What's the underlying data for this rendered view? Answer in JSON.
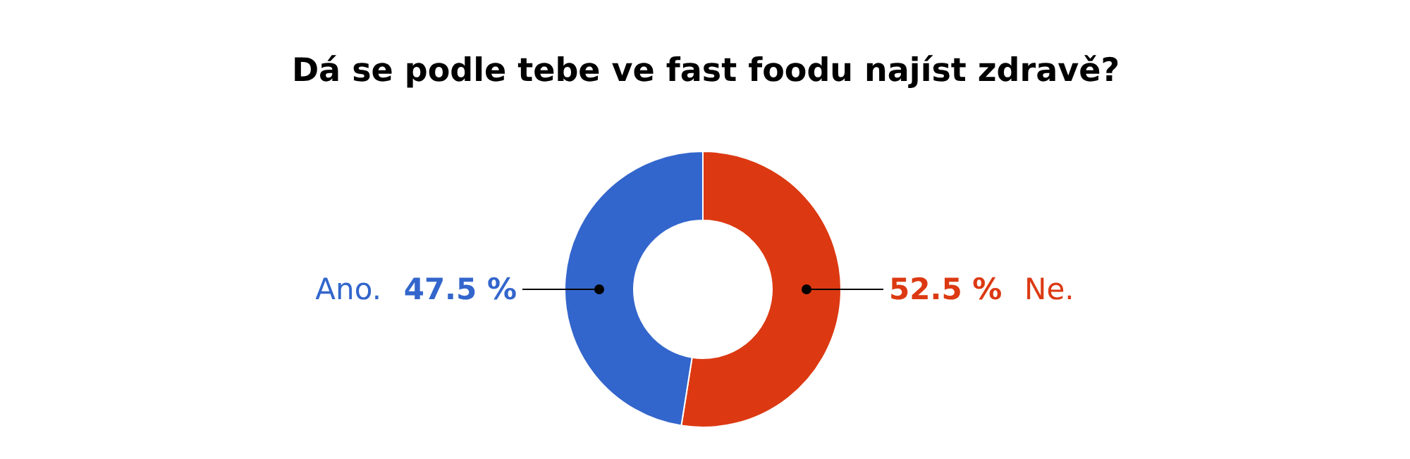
{
  "chart_data": {
    "type": "donut",
    "title": "Dá se podle tebe ve fast foodu najíst zdravě?",
    "categories": [
      "Ne.",
      "Ano."
    ],
    "values": [
      52.5,
      47.5
    ],
    "colors": [
      "#dc3912",
      "#3366cc"
    ],
    "value_labels": [
      "52.5 %",
      "47.5 %"
    ]
  }
}
